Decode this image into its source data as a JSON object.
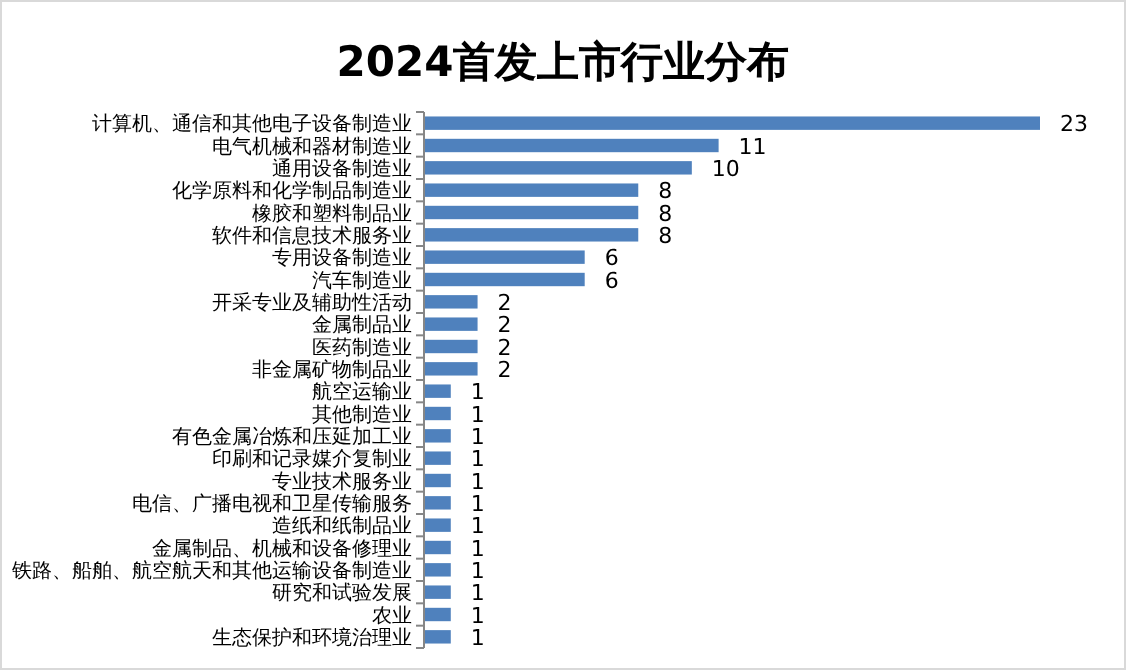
{
  "chart_data": {
    "type": "bar",
    "orientation": "horizontal",
    "title": "2024首发上市行业分布",
    "categories": [
      "计算机、通信和其他电子设备制造业",
      "电气机械和器材制造业",
      "通用设备制造业",
      "化学原料和化学制品制造业",
      "橡胶和塑料制品业",
      "软件和信息技术服务业",
      "专用设备制造业",
      "汽车制造业",
      "开采专业及辅助性活动",
      "金属制品业",
      "医药制造业",
      "非金属矿物制品业",
      "航空运输业",
      "其他制造业",
      "有色金属冶炼和压延加工业",
      "印刷和记录媒介复制业",
      "专业技术服务业",
      "电信、广播电视和卫星传输服务",
      "造纸和纸制品业",
      "金属制品、机械和设备修理业",
      "铁路、船舶、航空航天和其他运输设备制造业",
      "研究和试验发展",
      "农业",
      "生态保护和环境治理业"
    ],
    "values": [
      23,
      11,
      10,
      8,
      8,
      8,
      6,
      6,
      2,
      2,
      2,
      2,
      1,
      1,
      1,
      1,
      1,
      1,
      1,
      1,
      1,
      1,
      1,
      1
    ],
    "color": "#4f81bd",
    "data_labels": true
  }
}
